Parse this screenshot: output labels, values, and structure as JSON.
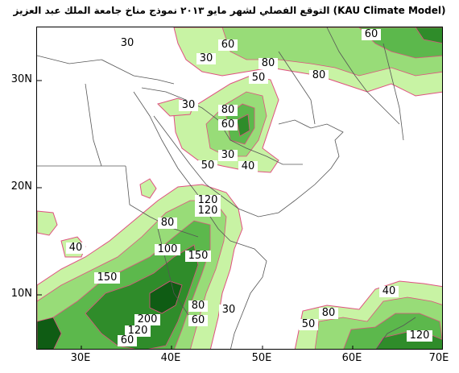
{
  "title": "التوقع الفصلي لشهر مايو ٢٠١٣ نموذج مناخ جامعة الملك عبد العزيز (KAU Climate Model)",
  "axes": {
    "y_labels": [
      "30N",
      "20N",
      "10N"
    ],
    "x_labels": [
      "30E",
      "40E",
      "50E",
      "60E",
      "70E"
    ]
  },
  "contour_labels": [
    {
      "text": "30"
    },
    {
      "text": "30"
    },
    {
      "text": "60"
    },
    {
      "text": "80"
    },
    {
      "text": "50"
    },
    {
      "text": "80"
    },
    {
      "text": "60"
    },
    {
      "text": "30"
    },
    {
      "text": "80"
    },
    {
      "text": "60"
    },
    {
      "text": "30"
    },
    {
      "text": "50"
    },
    {
      "text": "40"
    },
    {
      "text": "120"
    },
    {
      "text": "120"
    },
    {
      "text": "80"
    },
    {
      "text": "40"
    },
    {
      "text": "100"
    },
    {
      "text": "150"
    },
    {
      "text": "150"
    },
    {
      "text": "80"
    },
    {
      "text": "60"
    },
    {
      "text": "30"
    },
    {
      "text": "200"
    },
    {
      "text": "120"
    },
    {
      "text": "60"
    },
    {
      "text": "40"
    },
    {
      "text": "80"
    },
    {
      "text": "50"
    },
    {
      "text": "120"
    }
  ],
  "colors": {
    "light": "#c8f3a4",
    "mid1": "#98dc78",
    "mid2": "#5cb84c",
    "dark": "#2f8c2a",
    "darkest": "#0f5c14",
    "contour": "#e05080",
    "coast": "#555555"
  }
}
